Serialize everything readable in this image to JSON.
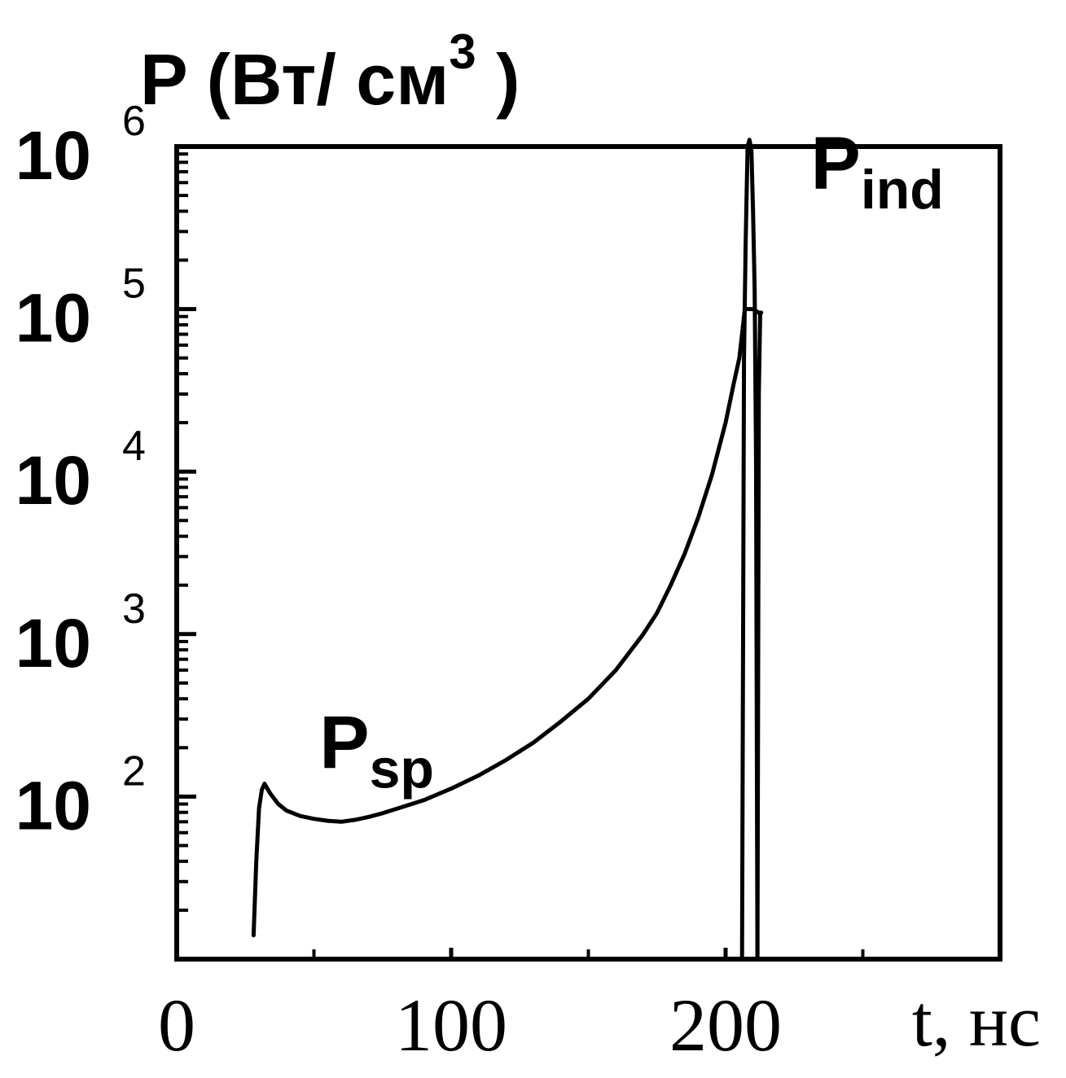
{
  "chart_data": {
    "type": "line",
    "title": "",
    "ylabel_parts": {
      "symbol": "P",
      "unit": "(Вт/ см",
      "exp": "3",
      "close": ")"
    },
    "xlabel": "t, нс",
    "xlim": [
      0,
      300
    ],
    "ylim": [
      10,
      1000000
    ],
    "y_scale": "log",
    "grid": false,
    "x_ticks": [
      {
        "value": 0,
        "label": "0"
      },
      {
        "value": 100,
        "label": "100"
      },
      {
        "value": 200,
        "label": "200"
      }
    ],
    "x_minor_ticks": [
      50,
      150,
      250
    ],
    "y_ticks": [
      {
        "value": 100,
        "base": "10",
        "exp": "2"
      },
      {
        "value": 1000,
        "base": "10",
        "exp": "3"
      },
      {
        "value": 10000,
        "base": "10",
        "exp": "4"
      },
      {
        "value": 100000,
        "base": "10",
        "exp": "5"
      },
      {
        "value": 1000000,
        "base": "10",
        "exp": "6"
      }
    ],
    "series": [
      {
        "x": [
          28,
          29,
          30,
          31,
          32,
          34,
          37,
          40,
          45,
          50,
          55,
          60,
          65,
          70,
          75,
          80,
          90,
          100,
          110,
          120,
          130,
          140,
          150,
          160,
          170,
          175,
          180,
          185,
          190,
          195,
          200,
          203,
          205,
          206,
          207,
          208,
          210,
          212,
          213
        ],
        "y": [
          14,
          40,
          85,
          110,
          120,
          105,
          90,
          82,
          76,
          73,
          71,
          70,
          72,
          75,
          79,
          84,
          95,
          112,
          135,
          168,
          215,
          290,
          400,
          600,
          1000,
          1350,
          2000,
          3100,
          5200,
          9500,
          20000,
          35000,
          50000,
          70000,
          100000,
          100000,
          100000,
          95000,
          95000
        ]
      },
      {
        "x": [
          206,
          206.7,
          207.3,
          208,
          208.7,
          209.4,
          210,
          210.6,
          211.1,
          211.6
        ],
        "y": [
          10,
          50000,
          250000,
          1000000,
          1100000,
          950000,
          400000,
          130000,
          12000,
          10
        ]
      },
      {
        "x": [
          211.6,
          212.1,
          212.6
        ],
        "y": [
          10,
          30000,
          95000
        ]
      }
    ],
    "annotations": [
      {
        "base": "P",
        "sub": "sp",
        "x": 52,
        "y": 150
      },
      {
        "base": "P",
        "sub": "ind",
        "x": 231,
        "y": 550000
      }
    ]
  }
}
